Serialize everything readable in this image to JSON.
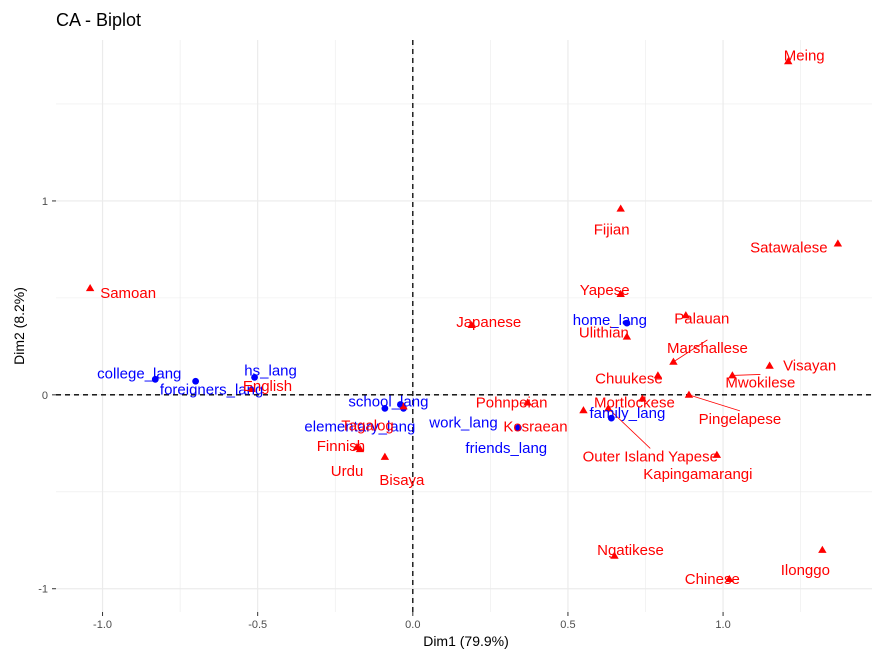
{
  "chart_data": {
    "type": "scatter",
    "title": "CA - Biplot",
    "xlabel": "Dim1 (79.9%)",
    "ylabel": "Dim2 (8.2%)",
    "xlim": [
      -1.15,
      1.48
    ],
    "ylim": [
      -1.12,
      1.83
    ],
    "xticks": [
      -1.0,
      -0.5,
      0.0,
      0.5,
      1.0
    ],
    "xtick_labels": [
      "-1.0",
      "-0.5",
      "0.0",
      "0.5",
      "1.0"
    ],
    "yticks": [
      -1,
      0,
      1
    ],
    "ytick_labels": [
      "-1",
      "0",
      "1"
    ],
    "grid": true,
    "colors": {
      "rows": "#0000ff",
      "cols": "#ff0000",
      "grid": "#ebebeb"
    },
    "series": [
      {
        "group": "rows",
        "marker": "circle",
        "points": [
          {
            "label": "college_lang",
            "x": -0.83,
            "y": 0.08
          },
          {
            "label": "foreigners_lang",
            "x": -0.7,
            "y": 0.07
          },
          {
            "label": "hs_lang",
            "x": -0.51,
            "y": 0.09
          },
          {
            "label": "school_lang",
            "x": -0.04,
            "y": -0.05
          },
          {
            "label": "elementary_lang",
            "x": -0.09,
            "y": -0.07
          },
          {
            "label": "work_lang",
            "x": -0.03,
            "y": -0.07
          },
          {
            "label": "friends_lang",
            "x": 0.34,
            "y": -0.17
          },
          {
            "label": "home_lang",
            "x": 0.69,
            "y": 0.37
          },
          {
            "label": "family_lang",
            "x": 0.64,
            "y": -0.12
          }
        ]
      },
      {
        "group": "cols",
        "marker": "triangle",
        "points": [
          {
            "label": "Meing",
            "x": 1.21,
            "y": 1.72
          },
          {
            "label": "Fijian",
            "x": 0.67,
            "y": 0.96
          },
          {
            "label": "Satawalese",
            "x": 1.37,
            "y": 0.78
          },
          {
            "label": "Samoan",
            "x": -1.04,
            "y": 0.55
          },
          {
            "label": "Yapese",
            "x": 0.67,
            "y": 0.52
          },
          {
            "label": "Palauan",
            "x": 0.88,
            "y": 0.41
          },
          {
            "label": "Japanese",
            "x": 0.19,
            "y": 0.36
          },
          {
            "label": "Ulithian",
            "x": 0.69,
            "y": 0.3
          },
          {
            "label": "Marshallese",
            "x": 0.84,
            "y": 0.17
          },
          {
            "label": "Visayan",
            "x": 1.15,
            "y": 0.15
          },
          {
            "label": "Chuukese",
            "x": 0.79,
            "y": 0.1
          },
          {
            "label": "English",
            "x": -0.52,
            "y": 0.03
          },
          {
            "label": "Mwokilese",
            "x": 1.03,
            "y": 0.1
          },
          {
            "label": "Pohnpeian",
            "x": 0.37,
            "y": -0.04
          },
          {
            "label": "Mortlockese",
            "x": 0.74,
            "y": -0.02
          },
          {
            "label": "Pingelapese",
            "x": 0.89,
            "y": 0.0
          },
          {
            "label": "Tagalog",
            "x": -0.03,
            "y": -0.06
          },
          {
            "label": "Kosraean",
            "x": 0.55,
            "y": -0.08
          },
          {
            "label": "Outer Island Yapese",
            "x": 0.63,
            "y": -0.07
          },
          {
            "label": "Finnish",
            "x": -0.18,
            "y": -0.27
          },
          {
            "label": "Urdu",
            "x": -0.17,
            "y": -0.28
          },
          {
            "label": "Bisaya",
            "x": -0.09,
            "y": -0.32
          },
          {
            "label": "Kapingamarangi",
            "x": 0.98,
            "y": -0.31
          },
          {
            "label": "Ngatikese",
            "x": 0.65,
            "y": -0.83
          },
          {
            "label": "Ilonggo",
            "x": 1.32,
            "y": -0.8
          },
          {
            "label": "Chinese",
            "x": 1.02,
            "y": -0.95
          }
        ]
      }
    ]
  }
}
